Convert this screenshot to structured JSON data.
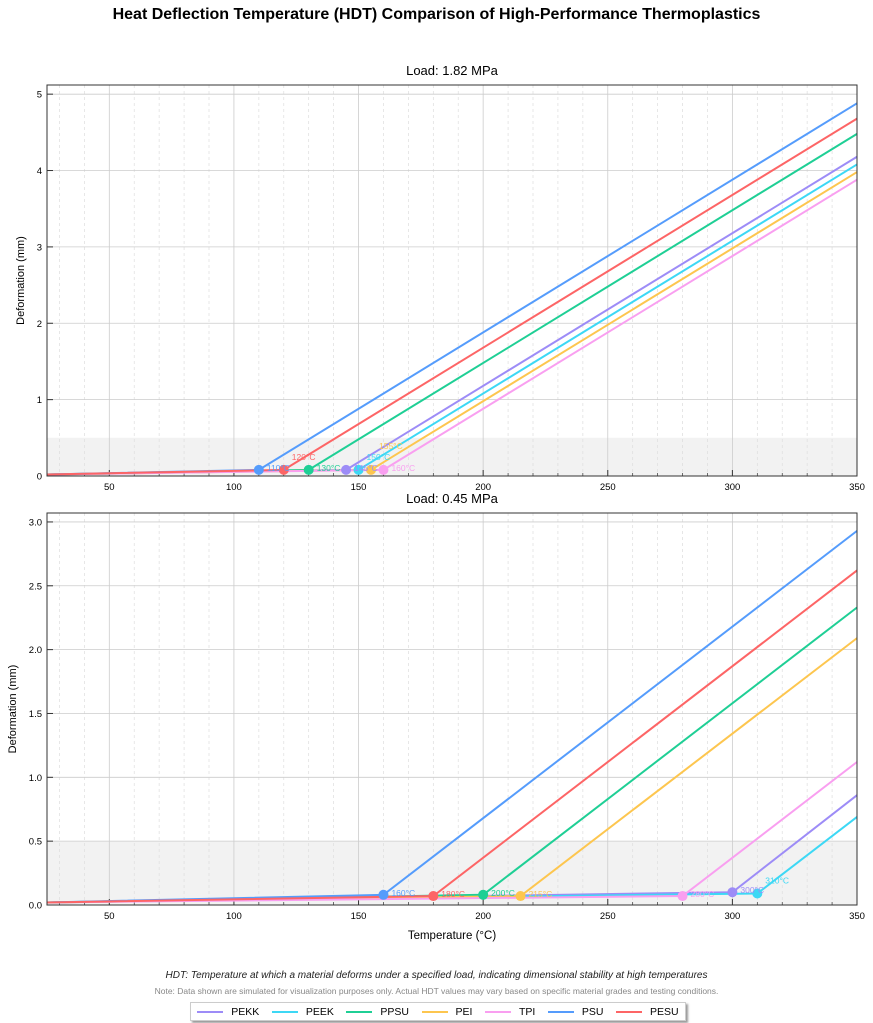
{
  "title": "Heat Deflection Temperature (HDT) Comparison of High-Performance Thermoplastics",
  "footnote": "HDT: Temperature at which a material deforms under a specified load, indicating dimensional stability at high temperatures",
  "note": "Note: Data shown are simulated for visualization purposes only. Actual HDT values may vary based on specific material grades and testing conditions.",
  "legend": [
    {
      "name": "PEKK",
      "color": "#9d8cf7"
    },
    {
      "name": "PEEK",
      "color": "#3dd8f5"
    },
    {
      "name": "PPSU",
      "color": "#1fcf95"
    },
    {
      "name": "PEI",
      "color": "#fdc64f"
    },
    {
      "name": "TPI",
      "color": "#f99ff0"
    },
    {
      "name": "PSU",
      "color": "#559cfc"
    },
    {
      "name": "PESU",
      "color": "#fd6566"
    }
  ],
  "chart_data": [
    {
      "type": "line",
      "title": "Load: 1.82 MPa",
      "xlabel": "",
      "ylabel": "Deformation (mm)",
      "xlim": [
        25,
        350
      ],
      "ylim": [
        0,
        5.12
      ],
      "xticks": [
        50,
        100,
        150,
        200,
        250,
        300,
        350
      ],
      "yticks": [
        0,
        1,
        2,
        3,
        4,
        5
      ],
      "shaded_band": [
        0,
        0.5
      ],
      "grid": true,
      "series": [
        {
          "name": "PEKK",
          "hdt": 145,
          "hdt_label": "145°C",
          "x": [
            25,
            145,
            350
          ],
          "y": [
            0.02,
            0.08,
            4.18
          ]
        },
        {
          "name": "PEEK",
          "hdt": 150,
          "hdt_label": "150°C",
          "x": [
            25,
            150,
            350
          ],
          "y": [
            0.02,
            0.08,
            4.08
          ]
        },
        {
          "name": "PPSU",
          "hdt": 130,
          "hdt_label": "130°C",
          "x": [
            25,
            130,
            350
          ],
          "y": [
            0.02,
            0.08,
            4.48
          ]
        },
        {
          "name": "PEI",
          "hdt": 155,
          "hdt_label": "155°C",
          "x": [
            25,
            155,
            350
          ],
          "y": [
            0.02,
            0.08,
            3.98
          ]
        },
        {
          "name": "TPI",
          "hdt": 160,
          "hdt_label": "160°C",
          "x": [
            25,
            160,
            350
          ],
          "y": [
            0.02,
            0.08,
            3.88
          ]
        },
        {
          "name": "PSU",
          "hdt": 110,
          "hdt_label": "110°C",
          "x": [
            25,
            110,
            350
          ],
          "y": [
            0.02,
            0.08,
            4.88
          ]
        },
        {
          "name": "PESU",
          "hdt": 120,
          "hdt_label": "120°C",
          "x": [
            25,
            120,
            350
          ],
          "y": [
            0.02,
            0.08,
            4.68
          ]
        }
      ]
    },
    {
      "type": "line",
      "title": "Load: 0.45 MPa",
      "xlabel": "Temperature (°C)",
      "ylabel": "Deformation (mm)",
      "xlim": [
        25,
        350
      ],
      "ylim": [
        0,
        3.07
      ],
      "xticks": [
        50,
        100,
        150,
        200,
        250,
        300,
        350
      ],
      "yticks": [
        "0.0",
        "0.5",
        "1.0",
        "1.5",
        "2.0",
        "2.5",
        "3.0"
      ],
      "shaded_band": [
        0,
        0.5
      ],
      "grid": true,
      "series": [
        {
          "name": "PEKK",
          "hdt": 300,
          "hdt_label": "300°C",
          "x": [
            25,
            300,
            350
          ],
          "y": [
            0.02,
            0.1,
            0.86
          ]
        },
        {
          "name": "PEEK",
          "hdt": 310,
          "hdt_label": "310°C",
          "x": [
            25,
            310,
            350
          ],
          "y": [
            0.02,
            0.09,
            0.69
          ]
        },
        {
          "name": "PPSU",
          "hdt": 200,
          "hdt_label": "200°C",
          "x": [
            25,
            200,
            350
          ],
          "y": [
            0.02,
            0.08,
            2.33
          ]
        },
        {
          "name": "PEI",
          "hdt": 215,
          "hdt_label": "215°C",
          "x": [
            25,
            215,
            350
          ],
          "y": [
            0.02,
            0.07,
            2.09
          ]
        },
        {
          "name": "TPI",
          "hdt": 280,
          "hdt_label": "280°C",
          "x": [
            25,
            280,
            350
          ],
          "y": [
            0.02,
            0.07,
            1.12
          ]
        },
        {
          "name": "PSU",
          "hdt": 160,
          "hdt_label": "160°C",
          "x": [
            25,
            160,
            350
          ],
          "y": [
            0.02,
            0.08,
            2.93
          ]
        },
        {
          "name": "PESU",
          "hdt": 180,
          "hdt_label": "180°C",
          "x": [
            25,
            180,
            350
          ],
          "y": [
            0.02,
            0.07,
            2.62
          ]
        }
      ]
    }
  ]
}
